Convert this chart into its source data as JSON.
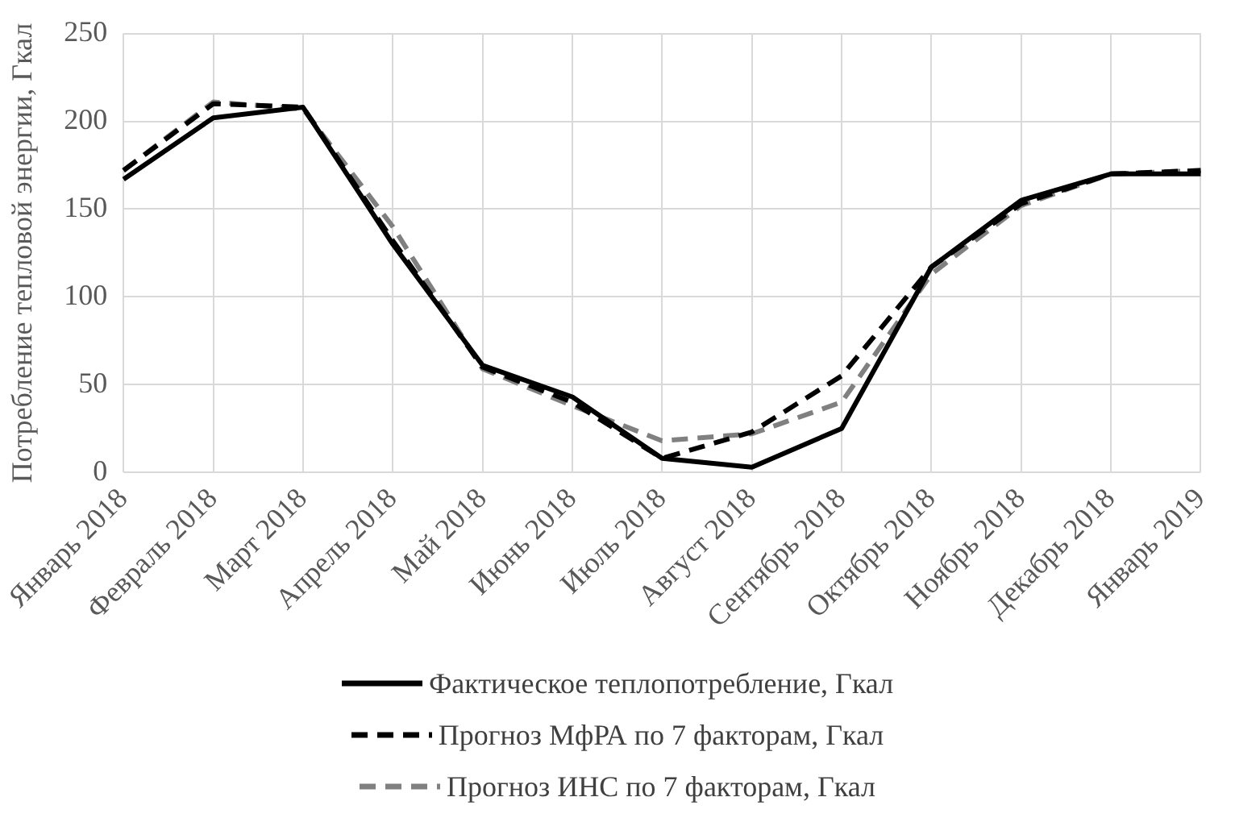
{
  "chart_data": {
    "type": "line",
    "ylabel": "Потребление тепловой энергии, Гкал",
    "categories": [
      "Январь 2018",
      "Февраль 2018",
      "Март 2018",
      "Апрель 2018",
      "Май 2018",
      "Июнь 2018",
      "Июль 2018",
      "Август 2018",
      "Сентябрь 2018",
      "Октябрь 2018",
      "Ноябрь 2018",
      "Декабрь 2018",
      "Январь 2019"
    ],
    "ylim": [
      0,
      250
    ],
    "yticks": [
      0,
      50,
      100,
      150,
      200,
      250
    ],
    "grid": true,
    "legend": "bottom",
    "marker": "none",
    "series": [
      {
        "name": "Фактическое теплопотребление, Гкал",
        "color": "#000000",
        "line_style": "solid",
        "values": [
          167,
          202,
          208,
          130,
          61,
          43,
          8,
          3,
          25,
          117,
          155,
          170,
          170
        ]
      },
      {
        "name": "Прогноз МфРА по 7 факторам, Гкал",
        "color": "#000000",
        "line_style": "dashed",
        "values": [
          172,
          210,
          208,
          132,
          60,
          40,
          8,
          23,
          55,
          117,
          153,
          170,
          172
        ]
      },
      {
        "name": "Прогноз ИНС по 7 факторам, Гкал",
        "color": "#808080",
        "line_style": "dashed",
        "values": [
          172,
          211,
          207,
          140,
          59,
          38,
          18,
          22,
          40,
          113,
          152,
          170,
          172
        ]
      }
    ]
  }
}
